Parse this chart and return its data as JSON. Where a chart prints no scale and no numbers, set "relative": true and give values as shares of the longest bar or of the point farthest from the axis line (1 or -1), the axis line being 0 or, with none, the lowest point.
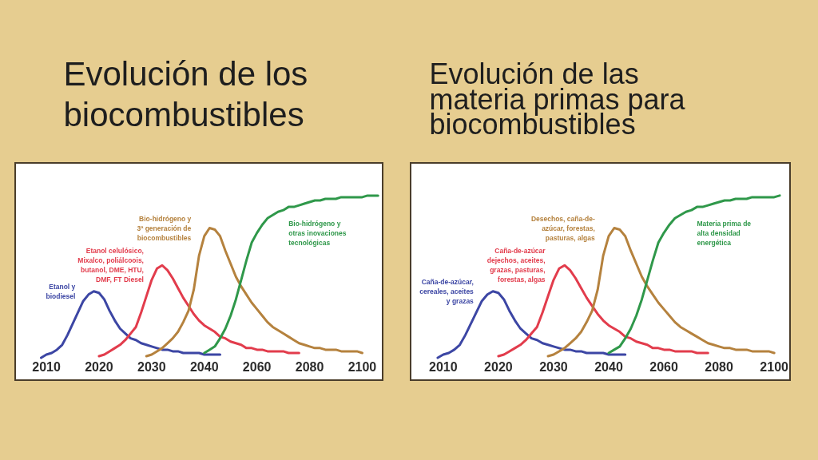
{
  "chart_data": [
    {
      "type": "line",
      "title": "Evolución de los\nbiocombustibles",
      "relative": true,
      "line_style": "solid",
      "categories": [
        null,
        "2010",
        null,
        null,
        null,
        null,
        null,
        null,
        null,
        null,
        null,
        "2020",
        null,
        null,
        null,
        null,
        null,
        null,
        null,
        null,
        null,
        "2030",
        null,
        null,
        null,
        null,
        null,
        null,
        null,
        null,
        null,
        "2040",
        null,
        null,
        null,
        null,
        null,
        null,
        null,
        null,
        null,
        "2060",
        null,
        null,
        null,
        null,
        null,
        null,
        null,
        null,
        null,
        "2080",
        null,
        null,
        null,
        null,
        null,
        null,
        null,
        null,
        null,
        "2100",
        null,
        null,
        null
      ],
      "series": [
        {
          "name": "Etanol y\nbiodiesel",
          "color": "#3c46a4",
          "values": [
            0,
            0.02,
            0.03,
            0.05,
            0.08,
            0.14,
            0.21,
            0.28,
            0.35,
            0.39,
            0.41,
            0.4,
            0.36,
            0.29,
            0.23,
            0.18,
            0.15,
            0.12,
            0.11,
            0.09,
            0.08,
            0.07,
            0.06,
            0.05,
            0.05,
            0.04,
            0.04,
            0.03,
            0.03,
            0.03,
            0.03,
            0.02,
            0.02,
            0.02,
            0.02,
            null,
            null,
            null,
            null,
            null,
            null,
            null,
            null,
            null,
            null,
            null,
            null,
            null,
            null,
            null,
            null,
            null,
            null,
            null,
            null,
            null,
            null,
            null,
            null,
            null,
            null,
            null,
            null,
            null,
            null
          ]
        },
        {
          "name": "Etanol celulósico,\nMixalco, poliálcoois,\nbutanol, DME, HTU,\nDMF, FT Diesel",
          "color": "#e23c4c",
          "values": [
            null,
            null,
            null,
            null,
            null,
            null,
            null,
            null,
            null,
            null,
            null,
            0.01,
            0.02,
            0.04,
            0.06,
            0.08,
            0.11,
            0.15,
            0.19,
            0.28,
            0.38,
            0.48,
            0.55,
            0.57,
            0.54,
            0.49,
            0.43,
            0.37,
            0.32,
            0.27,
            0.23,
            0.2,
            0.18,
            0.16,
            0.13,
            0.12,
            0.1,
            0.09,
            0.08,
            0.06,
            0.06,
            0.05,
            0.05,
            0.04,
            0.04,
            0.04,
            0.04,
            0.03,
            0.03,
            0.03,
            null,
            null,
            null,
            null,
            null,
            null,
            null,
            null,
            null,
            null,
            null,
            null,
            null,
            null,
            null
          ]
        },
        {
          "name": "Bio-hidrógeno y\n3ª generación de\nbiocombustibles",
          "color": "#b5823e",
          "values": [
            null,
            null,
            null,
            null,
            null,
            null,
            null,
            null,
            null,
            null,
            null,
            null,
            null,
            null,
            null,
            null,
            null,
            null,
            null,
            null,
            0.01,
            0.02,
            0.04,
            0.06,
            0.09,
            0.12,
            0.16,
            0.22,
            0.29,
            0.42,
            0.63,
            0.75,
            0.8,
            0.79,
            0.75,
            0.66,
            0.58,
            0.5,
            0.44,
            0.39,
            0.34,
            0.3,
            0.26,
            0.22,
            0.19,
            0.17,
            0.15,
            0.13,
            0.11,
            0.09,
            0.08,
            0.07,
            0.06,
            0.06,
            0.05,
            0.05,
            0.05,
            0.04,
            0.04,
            0.04,
            0.04,
            0.03,
            null,
            null,
            null
          ]
        },
        {
          "name": "Bio-hidrógeno y\notras inovaciones\ntecnológicas",
          "color": "#2f984a",
          "values": [
            null,
            null,
            null,
            null,
            null,
            null,
            null,
            null,
            null,
            null,
            null,
            null,
            null,
            null,
            null,
            null,
            null,
            null,
            null,
            null,
            null,
            null,
            null,
            null,
            null,
            null,
            null,
            null,
            null,
            null,
            null,
            0.03,
            0.05,
            0.07,
            0.12,
            0.18,
            0.26,
            0.36,
            0.48,
            0.6,
            0.71,
            0.77,
            0.82,
            0.86,
            0.88,
            0.9,
            0.91,
            0.93,
            0.93,
            0.94,
            0.95,
            0.96,
            0.97,
            0.97,
            0.98,
            0.98,
            0.98,
            0.99,
            0.99,
            0.99,
            0.99,
            0.99,
            1.0,
            1.0,
            1.0
          ]
        }
      ]
    },
    {
      "type": "line",
      "title": "Evolución de las\nmateria primas para\nbiocombustibles",
      "relative": true,
      "line_style": "solid",
      "categories": [
        null,
        "2010",
        null,
        null,
        null,
        null,
        null,
        null,
        null,
        null,
        null,
        "2020",
        null,
        null,
        null,
        null,
        null,
        null,
        null,
        null,
        null,
        "2030",
        null,
        null,
        null,
        null,
        null,
        null,
        null,
        null,
        null,
        "2040",
        null,
        null,
        null,
        null,
        null,
        null,
        null,
        null,
        null,
        "2060",
        null,
        null,
        null,
        null,
        null,
        null,
        null,
        null,
        null,
        "2080",
        null,
        null,
        null,
        null,
        null,
        null,
        null,
        null,
        null,
        "2100",
        null,
        null
      ],
      "series": [
        {
          "name": "Caña-de-azúcar,\ncereales, aceites\ny grazas",
          "color": "#3c46a4",
          "values": [
            0,
            0.02,
            0.03,
            0.05,
            0.08,
            0.14,
            0.21,
            0.28,
            0.35,
            0.39,
            0.41,
            0.4,
            0.36,
            0.29,
            0.23,
            0.18,
            0.15,
            0.12,
            0.11,
            0.09,
            0.08,
            0.07,
            0.06,
            0.05,
            0.05,
            0.04,
            0.04,
            0.03,
            0.03,
            0.03,
            0.03,
            0.02,
            0.02,
            0.02,
            0.02,
            null,
            null,
            null,
            null,
            null,
            null,
            null,
            null,
            null,
            null,
            null,
            null,
            null,
            null,
            null,
            null,
            null,
            null,
            null,
            null,
            null,
            null,
            null,
            null,
            null,
            null,
            null,
            null,
            null
          ]
        },
        {
          "name": "Caña-de-azúcar\ndejechos, aceites,\ngrazas, pasturas,\nforestas, algas",
          "color": "#e23c4c",
          "values": [
            null,
            null,
            null,
            null,
            null,
            null,
            null,
            null,
            null,
            null,
            null,
            0.01,
            0.02,
            0.04,
            0.06,
            0.08,
            0.11,
            0.15,
            0.19,
            0.28,
            0.38,
            0.48,
            0.55,
            0.57,
            0.54,
            0.49,
            0.43,
            0.37,
            0.32,
            0.27,
            0.23,
            0.2,
            0.18,
            0.16,
            0.13,
            0.12,
            0.1,
            0.09,
            0.08,
            0.06,
            0.06,
            0.05,
            0.05,
            0.04,
            0.04,
            0.04,
            0.04,
            0.03,
            0.03,
            0.03,
            null,
            null,
            null,
            null,
            null,
            null,
            null,
            null,
            null,
            null,
            null,
            null,
            null,
            null
          ]
        },
        {
          "name": "Desechos, caña-de-\nazúcar, forestas,\npasturas, algas",
          "color": "#b5823e",
          "values": [
            null,
            null,
            null,
            null,
            null,
            null,
            null,
            null,
            null,
            null,
            null,
            null,
            null,
            null,
            null,
            null,
            null,
            null,
            null,
            null,
            0.01,
            0.02,
            0.04,
            0.06,
            0.09,
            0.12,
            0.16,
            0.22,
            0.29,
            0.42,
            0.63,
            0.75,
            0.8,
            0.79,
            0.75,
            0.66,
            0.58,
            0.5,
            0.44,
            0.39,
            0.34,
            0.3,
            0.26,
            0.22,
            0.19,
            0.17,
            0.15,
            0.13,
            0.11,
            0.09,
            0.08,
            0.07,
            0.06,
            0.06,
            0.05,
            0.05,
            0.05,
            0.04,
            0.04,
            0.04,
            0.04,
            0.03,
            null,
            null
          ]
        },
        {
          "name": "Materia prima de\nalta densidad\nenergética",
          "color": "#2f984a",
          "values": [
            null,
            null,
            null,
            null,
            null,
            null,
            null,
            null,
            null,
            null,
            null,
            null,
            null,
            null,
            null,
            null,
            null,
            null,
            null,
            null,
            null,
            null,
            null,
            null,
            null,
            null,
            null,
            null,
            null,
            null,
            null,
            0.03,
            0.05,
            0.07,
            0.12,
            0.18,
            0.26,
            0.36,
            0.48,
            0.6,
            0.71,
            0.77,
            0.82,
            0.86,
            0.88,
            0.9,
            0.91,
            0.93,
            0.93,
            0.94,
            0.95,
            0.96,
            0.97,
            0.97,
            0.98,
            0.98,
            0.98,
            0.99,
            0.99,
            0.99,
            0.99,
            0.99,
            1.0,
            null
          ]
        }
      ]
    }
  ]
}
